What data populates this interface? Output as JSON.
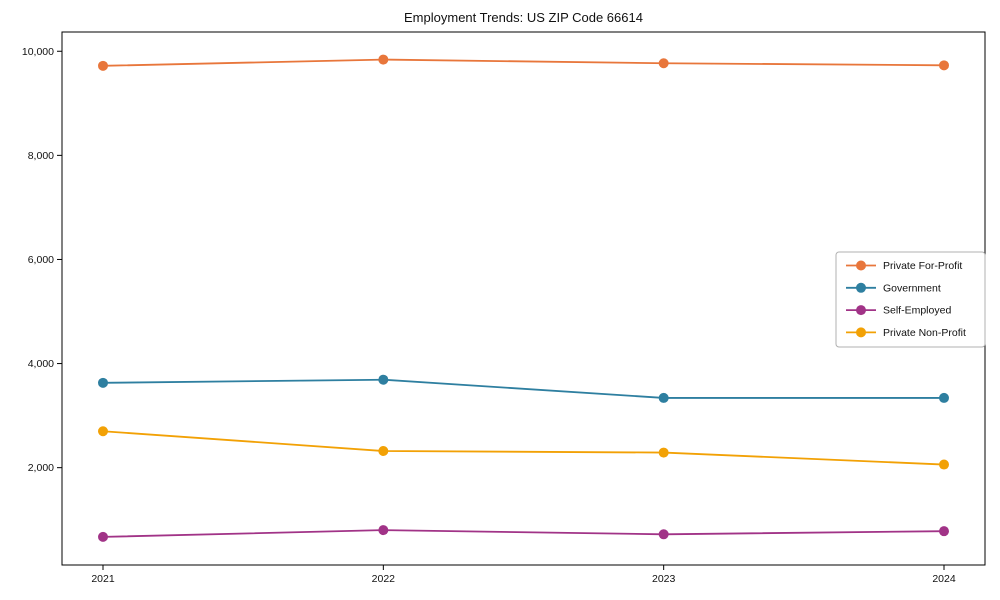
{
  "title": "Employment Trends: US ZIP Code 66614",
  "chart_data": {
    "type": "line",
    "title": "Employment Trends: US ZIP Code 66614",
    "xlabel": "",
    "ylabel": "",
    "x": [
      2021,
      2022,
      2023,
      2024
    ],
    "x_tick_labels": [
      "2021",
      "2022",
      "2023",
      "2024"
    ],
    "series": [
      {
        "name": "Private For-Profit",
        "color": "#e8763b",
        "values": [
          9720,
          9840,
          9770,
          9730
        ]
      },
      {
        "name": "Government",
        "color": "#2e7fa0",
        "values": [
          3630,
          3690,
          3340,
          3340
        ]
      },
      {
        "name": "Self-Employed",
        "color": "#a13387",
        "values": [
          670,
          800,
          720,
          780
        ]
      },
      {
        "name": "Private Non-Profit",
        "color": "#f2a105",
        "values": [
          2700,
          2320,
          2290,
          2060
        ]
      }
    ],
    "ylim": [
      130,
      10370
    ],
    "yticks": [
      2000,
      4000,
      6000,
      8000,
      10000
    ],
    "ytick_labels": [
      "2,000",
      "4,000",
      "6,000",
      "8,000",
      "10,000"
    ],
    "grid": false,
    "marker": "circle",
    "legend_position": "center-right",
    "axis_color": "#000000",
    "tick_label_color": "#111111",
    "legend_border_color": "#b0b0b0"
  }
}
